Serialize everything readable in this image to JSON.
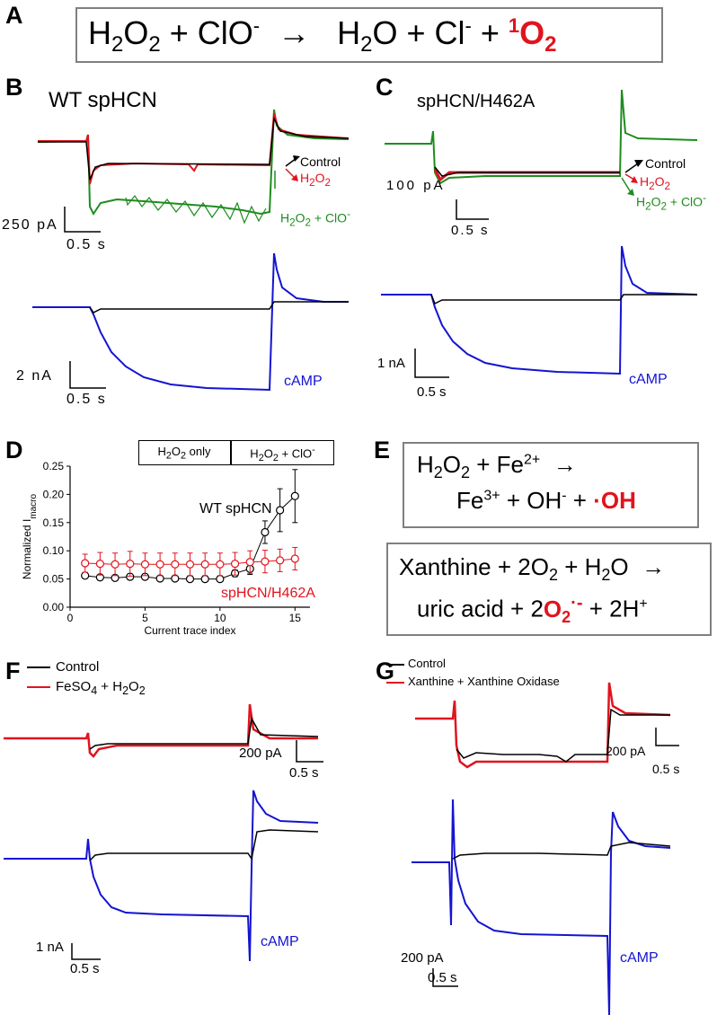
{
  "colors": {
    "black": "#000000",
    "red": "#e0141e",
    "green": "#1f8c1f",
    "blue": "#1414d2",
    "box_border": "#808080"
  },
  "panel_a": {
    "letter": "A"
  },
  "panel_b": {
    "letter": "B",
    "title": "WT spHCN",
    "legend": [
      "Control",
      "H2O2",
      "H2O2 + ClO-"
    ],
    "scale_current": "250 pA",
    "scale_time": "0.5 s",
    "scale_current_blue": "2 nA",
    "scale_time_blue": "0.5 s",
    "camp_label": "cAMP"
  },
  "panel_c": {
    "letter": "C",
    "title": "spHCN/H462A",
    "legend": [
      "Control",
      "H2O2",
      "H2O2 + ClO-"
    ],
    "scale_current": "100 pA",
    "scale_time": "0.5 s",
    "scale_current_blue": "1 nA",
    "scale_time_blue": "0.5 s",
    "camp_label": "cAMP"
  },
  "panel_d": {
    "letter": "D",
    "box_left": "H2O2 only",
    "box_right": "H2O2 + ClO-",
    "series_wt": "WT spHCN",
    "series_mut": "spHCN/H462A"
  },
  "panel_e": {
    "letter": "E"
  },
  "panel_f": {
    "letter": "F",
    "legend": [
      "Control",
      "FeSO4 + H2O2"
    ],
    "scale_current": "200 pA",
    "scale_time": "0.5 s",
    "scale_current_blue": "1 nA",
    "scale_time_blue": "0.5 s",
    "camp_label": "cAMP"
  },
  "panel_g": {
    "letter": "G",
    "legend": [
      "Control",
      "Xanthine + Xanthine Oxidase"
    ],
    "scale_current": "200 pA",
    "scale_time": "0.5 s",
    "scale_current_blue": "200 pA",
    "scale_time_blue": "0.5 s",
    "camp_label": "cAMP"
  },
  "chart_data": {
    "type": "scatter",
    "xlabel": "Current trace index",
    "ylabel": "Normalized I_macro",
    "xlim": [
      0,
      16
    ],
    "ylim": [
      0,
      0.25
    ],
    "xticks": [
      0,
      5,
      10,
      15
    ],
    "yticks": [
      0.0,
      0.05,
      0.1,
      0.15,
      0.2,
      0.25
    ],
    "series": [
      {
        "name": "WT spHCN",
        "color": "#000000",
        "x": [
          1,
          2,
          3,
          4,
          5,
          6,
          7,
          8,
          9,
          10,
          11,
          12,
          13,
          14,
          15
        ],
        "y": [
          0.056,
          0.053,
          0.052,
          0.054,
          0.054,
          0.051,
          0.051,
          0.05,
          0.05,
          0.05,
          0.06,
          0.068,
          0.133,
          0.172,
          0.197
        ],
        "err": [
          0.004,
          0.004,
          0.004,
          0.005,
          0.004,
          0.004,
          0.004,
          0.004,
          0.004,
          0.004,
          0.006,
          0.01,
          0.02,
          0.038,
          0.047
        ]
      },
      {
        "name": "spHCN/H462A",
        "color": "#e0141e",
        "x": [
          1,
          2,
          3,
          4,
          5,
          6,
          7,
          8,
          9,
          10,
          11,
          12,
          13,
          14,
          15
        ],
        "y": [
          0.078,
          0.077,
          0.076,
          0.077,
          0.076,
          0.076,
          0.076,
          0.076,
          0.076,
          0.076,
          0.077,
          0.08,
          0.081,
          0.083,
          0.086
        ],
        "err": [
          0.016,
          0.02,
          0.02,
          0.022,
          0.02,
          0.02,
          0.02,
          0.02,
          0.02,
          0.02,
          0.02,
          0.02,
          0.02,
          0.02,
          0.02
        ]
      }
    ]
  }
}
